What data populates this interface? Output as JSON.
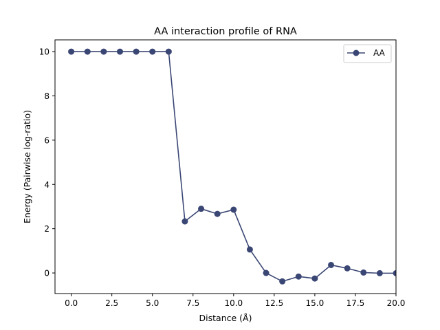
{
  "chart_data": {
    "type": "line",
    "title": "AA interaction profile of  RNA",
    "xlabel": "Distance (Å)",
    "ylabel": "Energy (Pairwise log-ratio)",
    "xlim": [
      -1.0,
      20.0
    ],
    "ylim": [
      -0.93,
      10.53
    ],
    "xticks": [
      0,
      2.5,
      5,
      7.5,
      10,
      12.5,
      15,
      17.5,
      20
    ],
    "xtick_labels": [
      "0.0",
      "2.5",
      "5.0",
      "7.5",
      "10.0",
      "12.5",
      "15.0",
      "17.5",
      "20.0"
    ],
    "yticks": [
      0,
      2,
      4,
      6,
      8,
      10
    ],
    "ytick_labels": [
      "0",
      "2",
      "4",
      "6",
      "8",
      "10"
    ],
    "grid": false,
    "legend_position": "top-right",
    "series": [
      {
        "name": "AA",
        "color": "#3a4674",
        "marker": "circle",
        "x": [
          0,
          1,
          2,
          3,
          4,
          5,
          6,
          7,
          8,
          9,
          10,
          11,
          12,
          13,
          14,
          15,
          16,
          17,
          18,
          19,
          20
        ],
        "y": [
          10,
          10,
          10,
          10,
          10,
          10,
          10,
          2.33,
          2.9,
          2.67,
          2.86,
          1.06,
          0.0,
          -0.38,
          -0.16,
          -0.25,
          0.36,
          0.21,
          0.02,
          -0.01,
          -0.01
        ]
      }
    ]
  }
}
